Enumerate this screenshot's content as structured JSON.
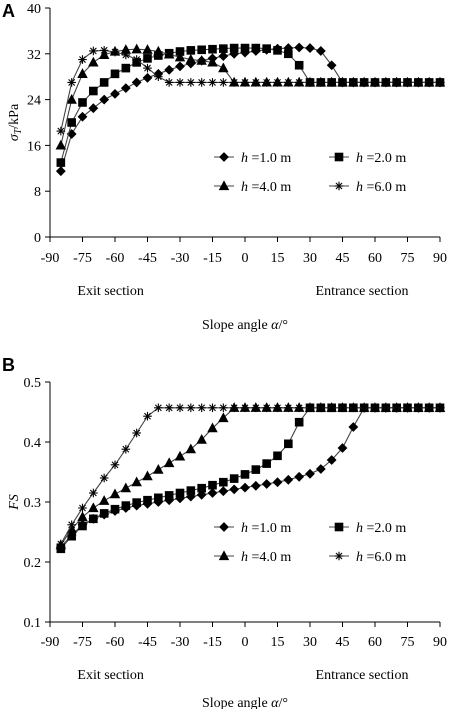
{
  "chart_data": [
    {
      "type": "line",
      "panel": "A",
      "ylabel_symbol": "σ",
      "ylabel_sub": "T",
      "ylabel_unit": "/kPa",
      "xlabel_main": "Slope angle",
      "xlabel_symbol": "α",
      "xlabel_unit": "/°",
      "section_left": "Exit section",
      "section_right": "Entrance section",
      "xlim": [
        -90,
        90
      ],
      "ylim": [
        0,
        40
      ],
      "xticks": [
        -90,
        -75,
        -60,
        -45,
        -30,
        -15,
        0,
        15,
        30,
        45,
        60,
        75,
        90
      ],
      "xtick_labels": [
        "-90",
        "-75",
        "-60",
        "-45",
        "-30",
        "-15",
        "0",
        "15",
        "30",
        "45",
        "60",
        "75",
        "90"
      ],
      "yticks": [
        0,
        8,
        16,
        24,
        32,
        40
      ],
      "ytick_labels": [
        "0",
        "8",
        "16",
        "24",
        "32",
        "40"
      ],
      "legend_placement": "middle-right",
      "series": [
        {
          "name": "h =1.0 m",
          "name_var": "h",
          "name_rest": " =1.0 m",
          "marker": "diamond",
          "x": [
            -85,
            -80,
            -75,
            -70,
            -65,
            -60,
            -55,
            -50,
            -45,
            -40,
            -35,
            -30,
            -25,
            -20,
            -15,
            -10,
            -5,
            0,
            5,
            10,
            15,
            20,
            25,
            30,
            35,
            40,
            45,
            50,
            55,
            60,
            65,
            70,
            75,
            80,
            85,
            90
          ],
          "y": [
            11.5,
            18,
            21,
            22.5,
            24,
            25,
            26,
            27,
            27.8,
            28.5,
            29.2,
            29.8,
            30.3,
            30.8,
            31.2,
            31.6,
            32,
            32.2,
            32.5,
            32.7,
            32.9,
            33,
            33.1,
            33,
            32.5,
            30,
            27,
            27,
            27,
            27,
            27,
            27,
            27,
            27,
            27,
            27
          ]
        },
        {
          "name": "h =2.0 m",
          "name_var": "h",
          "name_rest": " =2.0 m",
          "marker": "square",
          "x": [
            -85,
            -80,
            -75,
            -70,
            -65,
            -60,
            -55,
            -50,
            -45,
            -40,
            -35,
            -30,
            -25,
            -20,
            -15,
            -10,
            -5,
            0,
            5,
            10,
            15,
            20,
            25,
            30,
            35,
            40,
            45,
            50,
            55,
            60,
            65,
            70,
            75,
            80,
            85,
            90
          ],
          "y": [
            13,
            20,
            23.5,
            25.5,
            27,
            28.5,
            29.5,
            30.5,
            31.2,
            31.7,
            32.1,
            32.4,
            32.6,
            32.7,
            32.8,
            32.9,
            33,
            33,
            33,
            32.9,
            32.6,
            32,
            30,
            27,
            27,
            27,
            27,
            27,
            27,
            27,
            27,
            27,
            27,
            27,
            27,
            27
          ]
        },
        {
          "name": "h =4.0 m",
          "name_var": "h",
          "name_rest": " =4.0 m",
          "marker": "triangle",
          "x": [
            -85,
            -80,
            -75,
            -70,
            -65,
            -60,
            -55,
            -50,
            -45,
            -40,
            -35,
            -30,
            -25,
            -20,
            -15,
            -10,
            -5,
            0,
            5,
            10,
            15,
            20,
            25,
            30,
            35,
            40,
            45,
            50,
            55,
            60,
            65,
            70,
            75,
            80,
            85,
            90
          ],
          "y": [
            16,
            24,
            28.5,
            30.5,
            31.8,
            32.4,
            32.7,
            32.8,
            32.7,
            32.4,
            31.9,
            31.4,
            31,
            30.8,
            30.5,
            29.5,
            27,
            27,
            27,
            27,
            27,
            27,
            27,
            27,
            27,
            27,
            27,
            27,
            27,
            27,
            27,
            27,
            27,
            27,
            27,
            27
          ]
        },
        {
          "name": "h =6.0 m",
          "name_var": "h",
          "name_rest": " =6.0 m",
          "marker": "star",
          "x": [
            -85,
            -80,
            -75,
            -70,
            -65,
            -60,
            -55,
            -50,
            -45,
            -40,
            -35,
            -30,
            -25,
            -20,
            -15,
            -10,
            -5,
            0,
            5,
            10,
            15,
            20,
            25,
            30,
            35,
            40,
            45,
            50,
            55,
            60,
            65,
            70,
            75,
            80,
            85,
            90
          ],
          "y": [
            18.5,
            27,
            31,
            32.5,
            32.6,
            32.3,
            31.8,
            31,
            29.5,
            28,
            27,
            27,
            27,
            27,
            27,
            27,
            27,
            27,
            27,
            27,
            27,
            27,
            27,
            27,
            27,
            27,
            27,
            27,
            27,
            27,
            27,
            27,
            27,
            27,
            27,
            27
          ]
        }
      ]
    },
    {
      "type": "line",
      "panel": "B",
      "ylabel_symbol": "FS",
      "ylabel_sub": "",
      "ylabel_unit": "",
      "xlabel_main": "Slope angle",
      "xlabel_symbol": "α",
      "xlabel_unit": "/°",
      "section_left": "Exit section",
      "section_right": "Entrance section",
      "xlim": [
        -90,
        90
      ],
      "ylim": [
        0.1,
        0.5
      ],
      "xticks": [
        -90,
        -75,
        -60,
        -45,
        -30,
        -15,
        0,
        15,
        30,
        45,
        60,
        75,
        90
      ],
      "xtick_labels": [
        "-90",
        "-75",
        "-60",
        "-45",
        "-30",
        "-15",
        "0",
        "15",
        "30",
        "45",
        "60",
        "75",
        "90"
      ],
      "yticks": [
        0.1,
        0.2,
        0.3,
        0.4,
        0.5
      ],
      "ytick_labels": [
        "0.1",
        "0.2",
        "0.3",
        "0.4",
        "0.5"
      ],
      "legend_placement": "lower-right",
      "series": [
        {
          "name": "h =1.0 m",
          "name_var": "h",
          "name_rest": " =1.0 m",
          "marker": "diamond",
          "x": [
            -85,
            -80,
            -75,
            -70,
            -65,
            -60,
            -55,
            -50,
            -45,
            -40,
            -35,
            -30,
            -25,
            -20,
            -15,
            -10,
            -5,
            0,
            5,
            10,
            15,
            20,
            25,
            30,
            35,
            40,
            45,
            50,
            55,
            60,
            65,
            70,
            75,
            80,
            85,
            90
          ],
          "y": [
            0.225,
            0.245,
            0.262,
            0.272,
            0.279,
            0.285,
            0.29,
            0.294,
            0.297,
            0.3,
            0.303,
            0.306,
            0.309,
            0.312,
            0.315,
            0.318,
            0.321,
            0.324,
            0.327,
            0.33,
            0.333,
            0.337,
            0.342,
            0.347,
            0.355,
            0.37,
            0.39,
            0.425,
            0.457,
            0.457,
            0.457,
            0.457,
            0.457,
            0.457,
            0.457,
            0.457
          ]
        },
        {
          "name": "h =2.0 m",
          "name_var": "h",
          "name_rest": " =2.0 m",
          "marker": "square",
          "x": [
            -85,
            -80,
            -75,
            -70,
            -65,
            -60,
            -55,
            -50,
            -45,
            -40,
            -35,
            -30,
            -25,
            -20,
            -15,
            -10,
            -5,
            0,
            5,
            10,
            15,
            20,
            25,
            30,
            35,
            40,
            45,
            50,
            55,
            60,
            65,
            70,
            75,
            80,
            85,
            90
          ],
          "y": [
            0.222,
            0.243,
            0.26,
            0.272,
            0.281,
            0.288,
            0.294,
            0.299,
            0.303,
            0.307,
            0.311,
            0.315,
            0.319,
            0.323,
            0.328,
            0.333,
            0.339,
            0.346,
            0.354,
            0.364,
            0.377,
            0.397,
            0.433,
            0.457,
            0.457,
            0.457,
            0.457,
            0.457,
            0.457,
            0.457,
            0.457,
            0.457,
            0.457,
            0.457,
            0.457,
            0.457
          ]
        },
        {
          "name": "h =4.0 m",
          "name_var": "h",
          "name_rest": " =4.0 m",
          "marker": "triangle",
          "x": [
            -85,
            -80,
            -75,
            -70,
            -65,
            -60,
            -55,
            -50,
            -45,
            -40,
            -35,
            -30,
            -25,
            -20,
            -15,
            -10,
            -5,
            0,
            5,
            10,
            15,
            20,
            25,
            30,
            35,
            40,
            45,
            50,
            55,
            60,
            65,
            70,
            75,
            80,
            85,
            90
          ],
          "y": [
            0.228,
            0.255,
            0.275,
            0.29,
            0.302,
            0.313,
            0.323,
            0.333,
            0.343,
            0.354,
            0.365,
            0.376,
            0.388,
            0.404,
            0.423,
            0.44,
            0.457,
            0.457,
            0.457,
            0.457,
            0.457,
            0.457,
            0.457,
            0.457,
            0.457,
            0.457,
            0.457,
            0.457,
            0.457,
            0.457,
            0.457,
            0.457,
            0.457,
            0.457,
            0.457,
            0.457
          ]
        },
        {
          "name": "h =6.0 m",
          "name_var": "h",
          "name_rest": " =6.0 m",
          "marker": "star",
          "x": [
            -85,
            -80,
            -75,
            -70,
            -65,
            -60,
            -55,
            -50,
            -45,
            -40,
            -35,
            -30,
            -25,
            -20,
            -15,
            -10,
            -5,
            0,
            5,
            10,
            15,
            20,
            25,
            30,
            35,
            40,
            45,
            50,
            55,
            60,
            65,
            70,
            75,
            80,
            85,
            90
          ],
          "y": [
            0.23,
            0.262,
            0.29,
            0.315,
            0.34,
            0.362,
            0.388,
            0.415,
            0.443,
            0.457,
            0.457,
            0.457,
            0.457,
            0.457,
            0.457,
            0.457,
            0.457,
            0.457,
            0.457,
            0.457,
            0.457,
            0.457,
            0.457,
            0.457,
            0.457,
            0.457,
            0.457,
            0.457,
            0.457,
            0.457,
            0.457,
            0.457,
            0.457,
            0.457,
            0.457,
            0.457
          ]
        }
      ]
    }
  ]
}
